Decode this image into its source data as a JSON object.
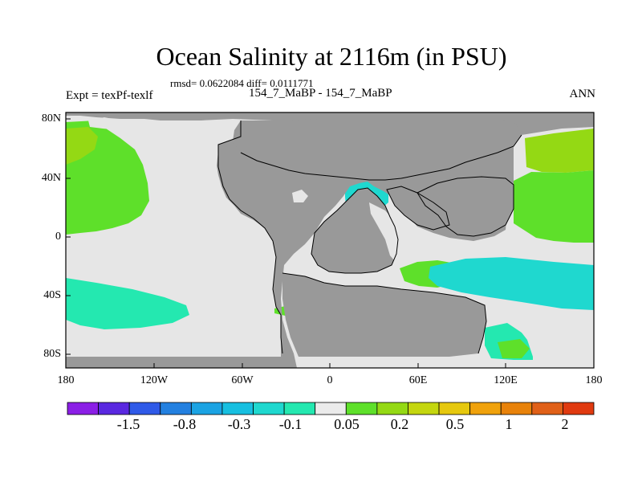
{
  "map": {
    "title": "Ocean Salinity at 2116m (in PSU)",
    "stats": "rmsd= 0.0622084 diff= 0.0111771",
    "subtitle": "154_7_MaBP - 154_7_MaBP",
    "experiment": "Expt = texPf-texlf",
    "season": "ANN",
    "x_ticks": [
      "180",
      "120W",
      "60W",
      "0",
      "60E",
      "120E",
      "180"
    ],
    "y_ticks": [
      "80N",
      "40N",
      "0",
      "40S",
      "80S"
    ]
  },
  "colorbar": {
    "colors": [
      "#8b1fe6",
      "#5a28e0",
      "#2f5ae8",
      "#2380e0",
      "#1ba3e3",
      "#17bfe0",
      "#1fd8cf",
      "#24e8b0",
      "#ebebeb",
      "#5ee02a",
      "#94d914",
      "#c4d60f",
      "#e6c80e",
      "#f0a20c",
      "#e8820a",
      "#e06018",
      "#e03a10"
    ],
    "labels": [
      "-1.5",
      "-0.8",
      "-0.3",
      "-0.1",
      "0.05",
      "0.2",
      "0.5",
      "1",
      "2"
    ]
  },
  "palette": {
    "ocean_background": "#e6e6e6",
    "land": "#999999",
    "coast": "#000000"
  }
}
